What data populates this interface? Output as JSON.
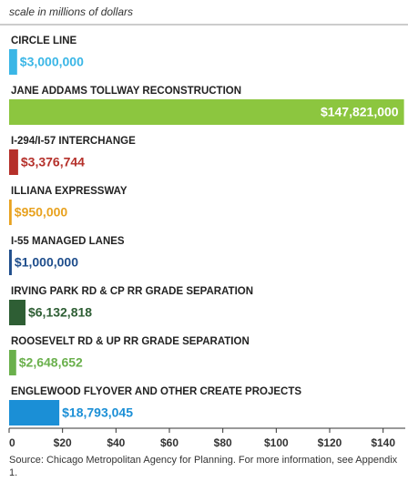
{
  "chart_data": {
    "type": "bar",
    "orientation": "horizontal",
    "subtitle": "scale in millions of dollars",
    "categories": [
      "CIRCLE LINE",
      "JANE ADDAMS TOLLWAY RECONSTRUCTION",
      "I-294/I-57 INTERCHANGE",
      "ILLIANA EXPRESSWAY",
      "I-55 MANAGED LANES",
      "IRVING PARK RD & CP RR GRADE SEPARATION",
      "ROOSEVELT RD & UP RR GRADE SEPARATION",
      "ENGLEWOOD FLYOVER AND OTHER CREATE PROJECTS"
    ],
    "values": [
      3,
      147.821,
      3.376744,
      0.95,
      1,
      6.132818,
      2.648652,
      18.793045
    ],
    "value_labels": [
      "$3,000,000",
      "$147,821,000",
      "$3,376,744",
      "$950,000",
      "$1,000,000",
      "$6,132,818",
      "$2,648,652",
      "$18,793,045"
    ],
    "colors": [
      "#3ab6e6",
      "#8cc63f",
      "#b5302a",
      "#e8a21f",
      "#1f4e8c",
      "#2e5e34",
      "#6ab04c",
      "#1b8fd6"
    ],
    "xlim": [
      0,
      150
    ],
    "xticks": [
      0,
      {
        "value": 20,
        "label": "$20"
      },
      {
        "value": 40,
        "label": "$40"
      },
      {
        "value": 60,
        "label": "$60"
      },
      {
        "value": 80,
        "label": "$80"
      },
      {
        "value": 100,
        "label": "$100"
      },
      {
        "value": 120,
        "label": "$120"
      },
      {
        "value": 140,
        "label": "$140"
      }
    ],
    "grid": false,
    "source": "Source: Chicago Metropolitan Agency for Planning. For more information, see Appendix 1."
  }
}
